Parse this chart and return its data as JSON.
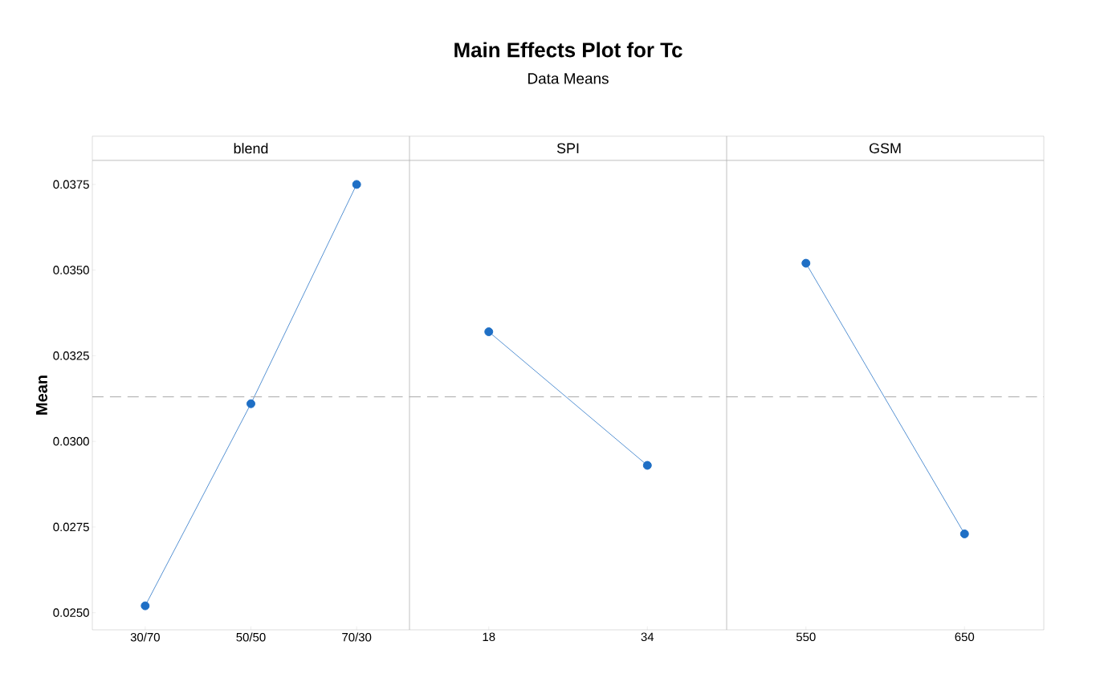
{
  "chart_data": [
    {
      "type": "line",
      "xlabel": "blend",
      "ylabel": "Mean",
      "categories": [
        "30/70",
        "50/50",
        "70/30"
      ],
      "values": [
        0.0252,
        0.0311,
        0.0375
      ],
      "color": "#1f6fc5",
      "marker": "circle",
      "line_style": "solid",
      "ylim": [
        0.0245,
        0.0382
      ],
      "yticks": [
        {
          "value": 0.025,
          "label": "0.0250"
        },
        {
          "value": 0.0275,
          "label": "0.0275"
        },
        {
          "value": 0.03,
          "label": "0.0300"
        },
        {
          "value": 0.0325,
          "label": "0.0325"
        },
        {
          "value": 0.035,
          "label": "0.0350"
        },
        {
          "value": 0.0375,
          "label": "0.0375"
        }
      ],
      "ref_lines": [
        {
          "axis": "y",
          "value": 0.0313,
          "color": "#aaaaaa",
          "line_style": "dashed"
        }
      ]
    },
    {
      "type": "line",
      "title": "Main Effects Plot for Tc",
      "subtitle": "Data Means",
      "xlabel": "SPI",
      "categories": [
        "18",
        "34"
      ],
      "values": [
        0.0332,
        0.0293
      ],
      "color": "#1f6fc5",
      "marker": "circle",
      "line_style": "solid",
      "ylim": [
        0.0245,
        0.0382
      ],
      "tick_labels": "x",
      "ref_lines": [
        {
          "axis": "y",
          "value": 0.0313,
          "color": "#aaaaaa",
          "line_style": "dashed"
        }
      ]
    },
    {
      "type": "line",
      "xlabel": "GSM",
      "categories": [
        "550",
        "650"
      ],
      "values": [
        0.0352,
        0.0273
      ],
      "color": "#1f6fc5",
      "marker": "circle",
      "line_style": "solid",
      "ylim": [
        0.0245,
        0.0382
      ],
      "tick_labels": "x",
      "ref_lines": [
        {
          "axis": "y",
          "value": 0.0313,
          "color": "#aaaaaa",
          "line_style": "dashed"
        }
      ]
    }
  ]
}
